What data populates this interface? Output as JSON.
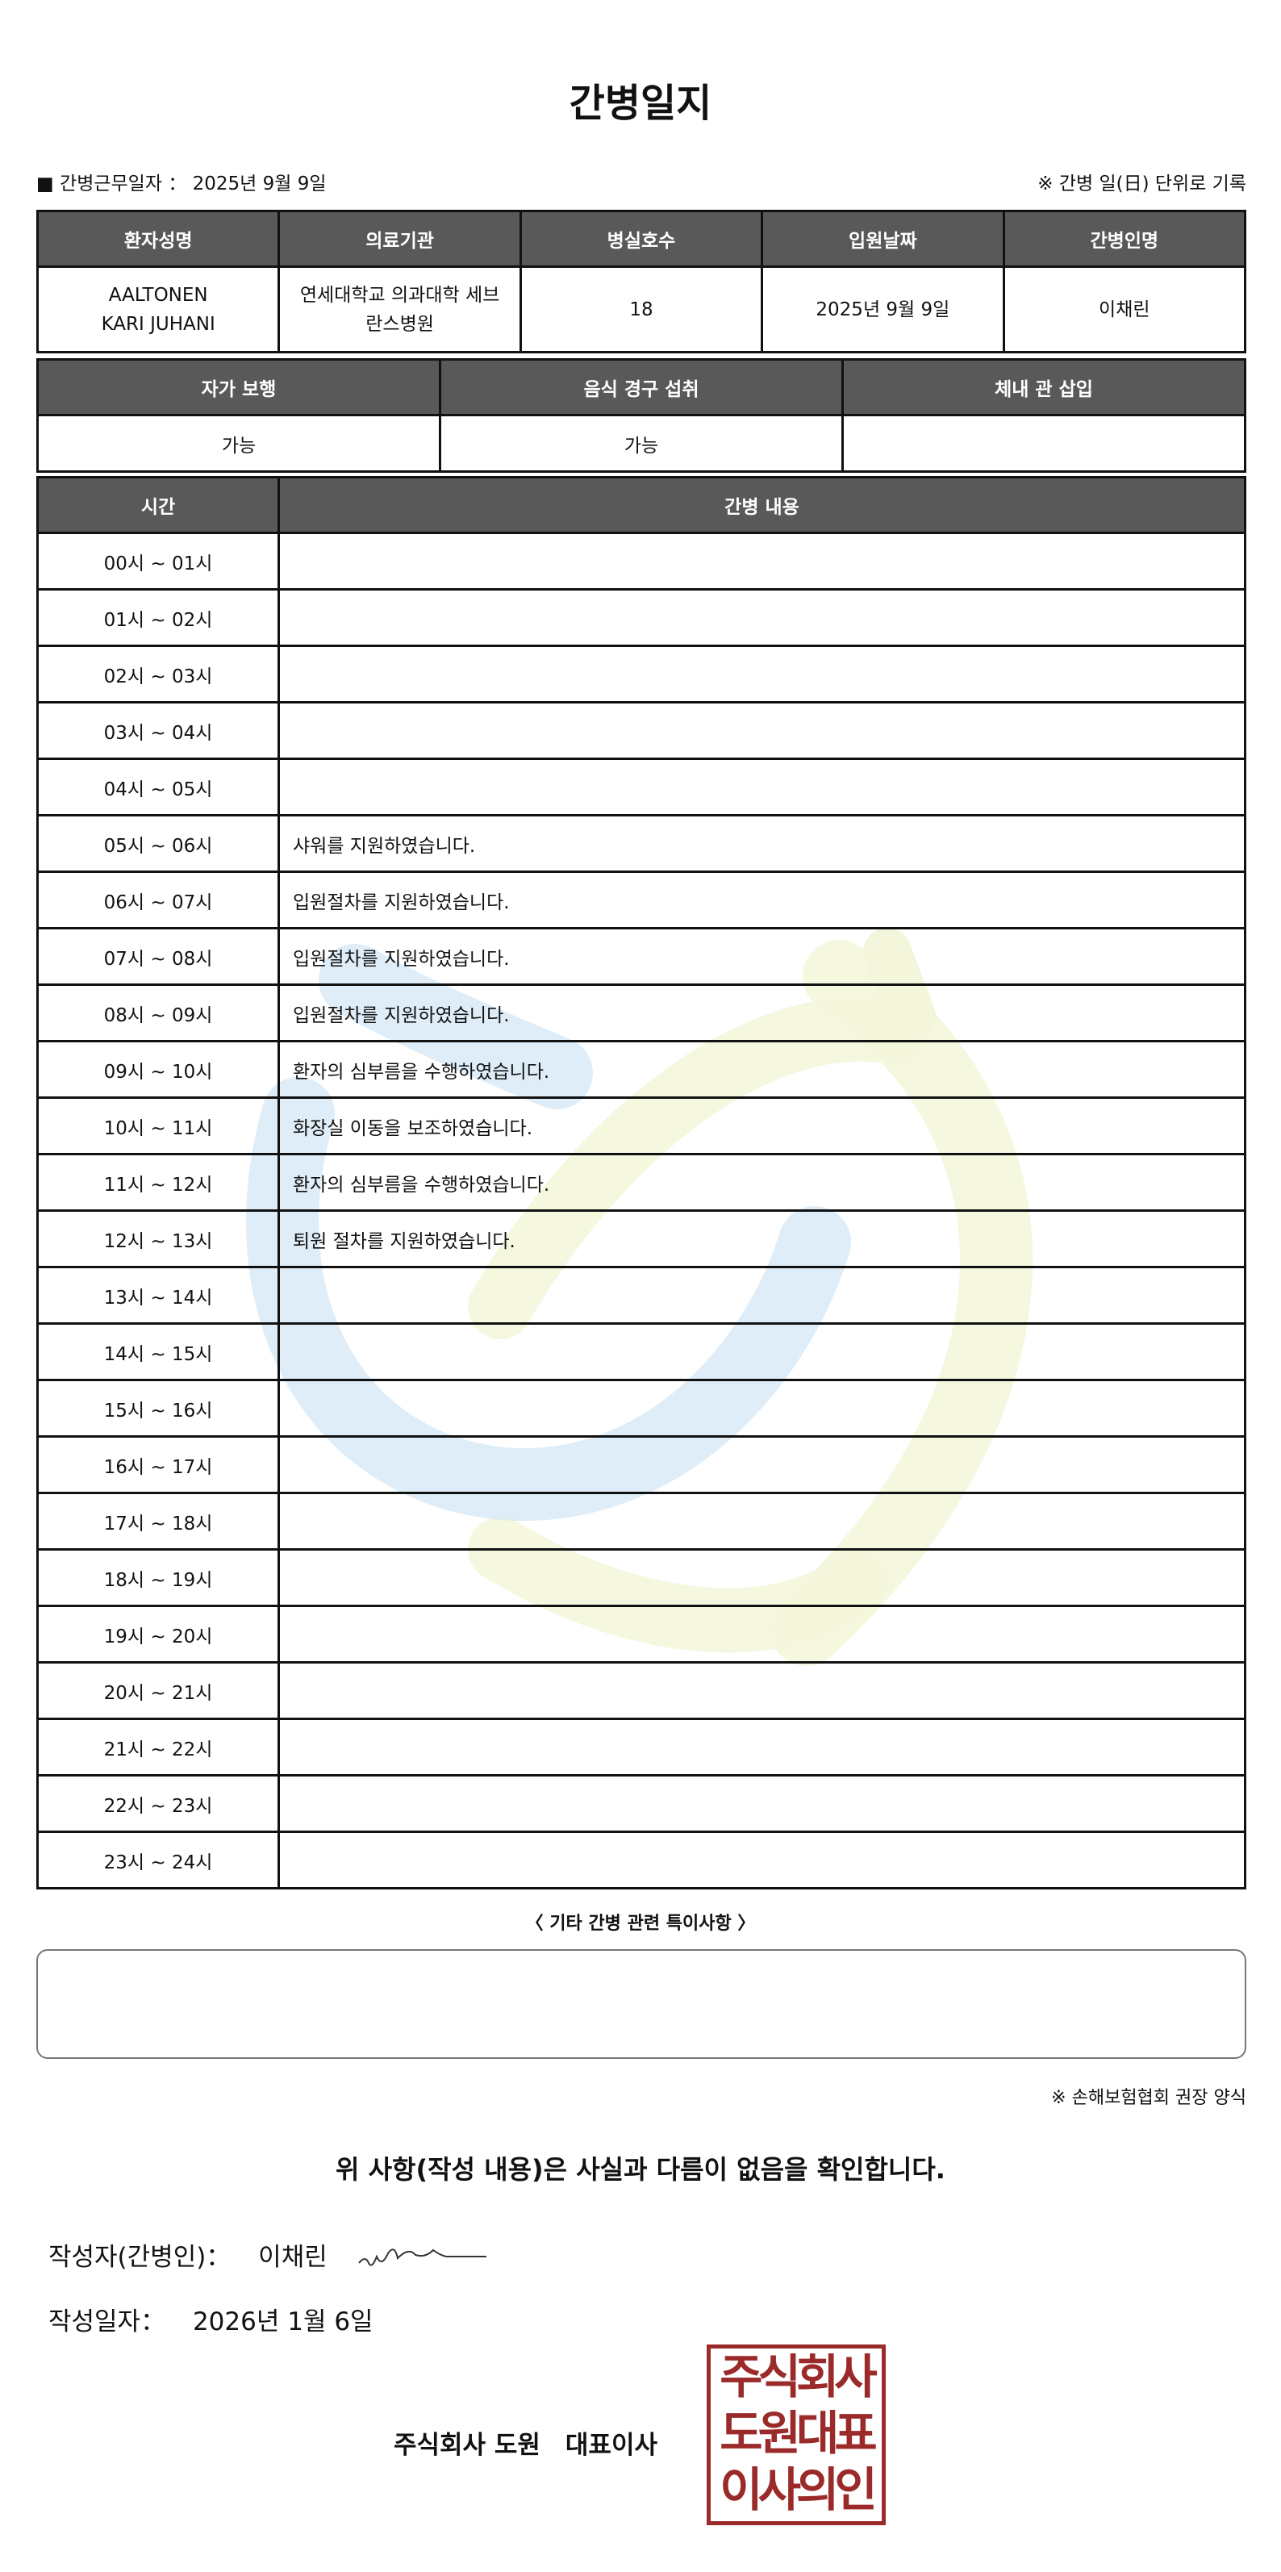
{
  "title": "간병일지",
  "info": {
    "work_date_label": "■ 간병근무일자 ：",
    "work_date": "2025년 9월 9일",
    "record_note": "※ 간병 일(日) 단위로 기록"
  },
  "patient_table": {
    "headers": [
      "환자성명",
      "의료기관",
      "병실호수",
      "입원날짜",
      "간병인명"
    ],
    "values": [
      "AALTONEN KARI JUHANI",
      "연세대학교 의과대학 세브란스병원",
      "18",
      "2025년 9월 9일",
      "이채린"
    ]
  },
  "status_table": {
    "headers": [
      "자가 보행",
      "음식 경구 섭취",
      "체내 관 삽입"
    ],
    "values": [
      "가능",
      "가능",
      ""
    ]
  },
  "care_log": {
    "headers": [
      "시간",
      "간병 내용"
    ],
    "rows": [
      {
        "time": "00시 ~ 01시",
        "content": ""
      },
      {
        "time": "01시 ~ 02시",
        "content": ""
      },
      {
        "time": "02시 ~ 03시",
        "content": ""
      },
      {
        "time": "03시 ~ 04시",
        "content": ""
      },
      {
        "time": "04시 ~ 05시",
        "content": ""
      },
      {
        "time": "05시 ~ 06시",
        "content": "샤워를 지원하였습니다."
      },
      {
        "time": "06시 ~ 07시",
        "content": "입원절차를 지원하였습니다."
      },
      {
        "time": "07시 ~ 08시",
        "content": "입원절차를 지원하였습니다."
      },
      {
        "time": "08시 ~ 09시",
        "content": "입원절차를 지원하였습니다."
      },
      {
        "time": "09시 ~ 10시",
        "content": "환자의 심부름을 수행하였습니다."
      },
      {
        "time": "10시 ~ 11시",
        "content": "화장실 이동을 보조하였습니다."
      },
      {
        "time": "11시 ~ 12시",
        "content": "환자의 심부름을 수행하였습니다."
      },
      {
        "time": "12시 ~ 13시",
        "content": "퇴원 절차를 지원하였습니다."
      },
      {
        "time": "13시 ~ 14시",
        "content": ""
      },
      {
        "time": "14시 ~ 15시",
        "content": ""
      },
      {
        "time": "15시 ~ 16시",
        "content": ""
      },
      {
        "time": "16시 ~ 17시",
        "content": ""
      },
      {
        "time": "17시 ~ 18시",
        "content": ""
      },
      {
        "time": "18시 ~ 19시",
        "content": ""
      },
      {
        "time": "19시 ~ 20시",
        "content": ""
      },
      {
        "time": "20시 ~ 21시",
        "content": ""
      },
      {
        "time": "21시 ~ 22시",
        "content": ""
      },
      {
        "time": "22시 ~ 23시",
        "content": ""
      },
      {
        "time": "23시 ~ 24시",
        "content": ""
      }
    ]
  },
  "notes": {
    "label": "〈 기타 간병 관련 특이사항 〉",
    "value": ""
  },
  "form_note": "※ 손해보험협회 권장 양식",
  "confirm": "위 사항(작성 내용)은 사실과 다름이 없음을 확인합니다.",
  "writer": {
    "label": "작성자(간병인)：",
    "name": "이채린"
  },
  "written_date": {
    "label": "작성일자：",
    "value": "2026년 1월 6일"
  },
  "company": "주식회사 도원　대표이사",
  "stamp": {
    "lines": [
      "주식회사",
      "도원대표",
      "이사의인"
    ],
    "color": "#9b2a2a"
  },
  "colors": {
    "header_bg": "#595959",
    "watermark_blue": "#d6e8f5",
    "watermark_yellow": "#f4f6dc"
  }
}
